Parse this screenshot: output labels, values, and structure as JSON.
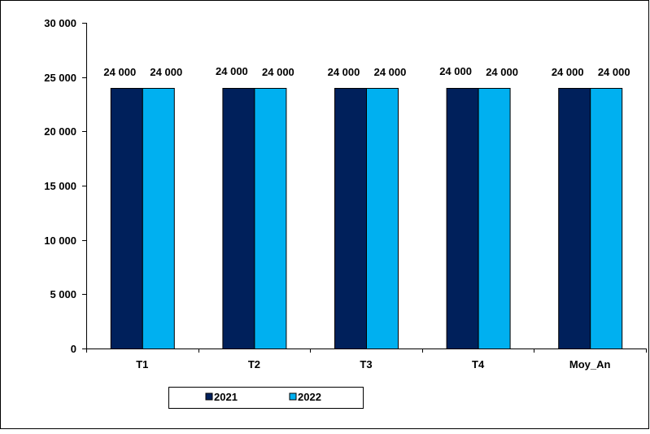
{
  "chart_data": {
    "type": "bar",
    "title": "",
    "xlabel": "",
    "ylabel": "",
    "categories": [
      "T1",
      "T2",
      "T3",
      "T4",
      "Moy_An"
    ],
    "series": [
      {
        "name": "2021",
        "values": [
          24000,
          24000,
          24000,
          24000,
          24000
        ],
        "color": "#00205b",
        "labels": [
          "24 000",
          "24 000",
          "24 000",
          "24 000",
          "24 000"
        ]
      },
      {
        "name": "2022",
        "values": [
          24000,
          24000,
          24000,
          24000,
          24000
        ],
        "color": "#00b0f0",
        "labels": [
          "24 000",
          "24 000",
          "24 000",
          "24 000",
          "24 000"
        ]
      }
    ],
    "ylim": [
      0,
      30000
    ],
    "yticks": [
      0,
      5000,
      10000,
      15000,
      20000,
      25000,
      30000
    ],
    "ytick_labels": [
      "0",
      "5 000",
      "10 000",
      "15 000",
      "20 000",
      "25 000",
      "30 000"
    ],
    "grid": false,
    "legend_position": "bottom"
  }
}
